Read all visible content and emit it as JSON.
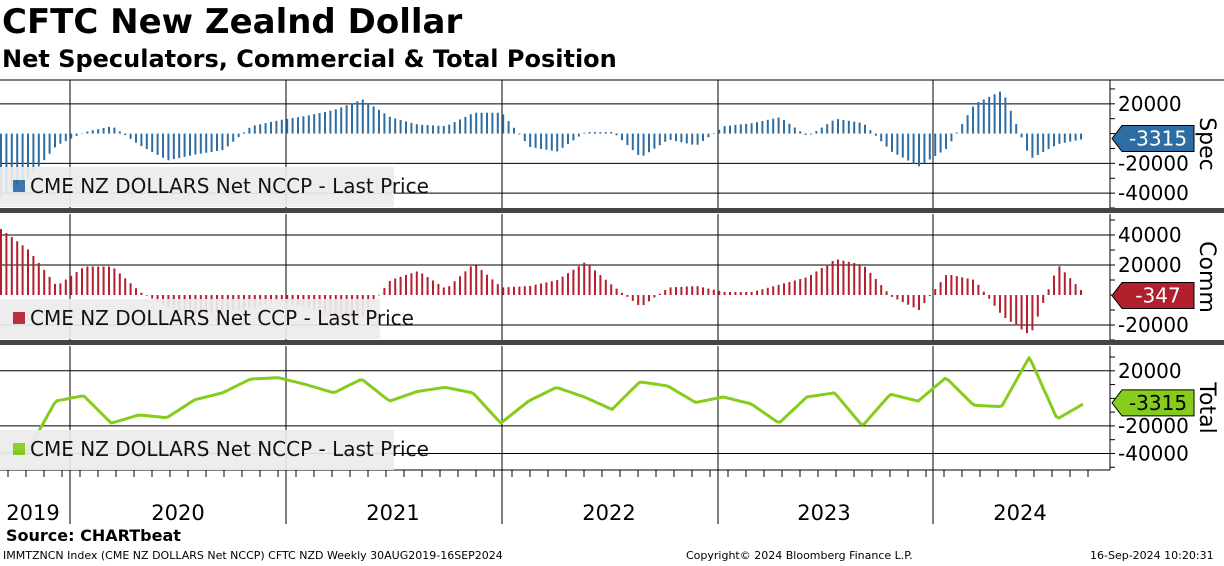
{
  "title": "CFTC New Zealnd Dollar",
  "subtitle": "Net Speculators, Commercial & Total Position",
  "source": "Source: CHARTbeat",
  "footer": {
    "left": "IMMTZNCN Index (CME NZ DOLLARS Net NCCP) CFTC NZD  Weekly 30AUG2019-16SEP2024",
    "center": "Copyright© 2024 Bloomberg Finance L.P.",
    "right": "16-Sep-2024 10:20:31"
  },
  "colors": {
    "spec": "#2e6da4",
    "comm": "#b21f2d",
    "total": "#86cc1c",
    "grid": "#000000"
  },
  "chart_data": [
    {
      "type": "bar",
      "panel": "Spec",
      "legend": "CME NZ DOLLARS Net NCCP - Last Price",
      "last_value_label": "-3315",
      "ylim": [
        -50000,
        36000
      ],
      "yticks": [
        20000,
        -20000,
        -40000
      ],
      "ytick_labels": [
        "20000",
        "-20000",
        "-40000"
      ],
      "x_start_year": 2019.66,
      "x_step_years": 0.25,
      "values": [
        -42000,
        -30000,
        -8000,
        1000,
        5000,
        -8000,
        -18000,
        -14000,
        -11000,
        5000,
        9000,
        12000,
        16000,
        23000,
        11000,
        6000,
        5000,
        14000,
        14000,
        -9000,
        -12000,
        1000,
        1000,
        -16000,
        -4000,
        -8000,
        5000,
        7000,
        11000,
        -2000,
        10000,
        7000,
        -12000,
        -22000,
        -10000,
        20000,
        29000,
        -17000,
        -7000,
        -3315
      ],
      "x_labels": [
        "2019",
        "2020",
        "2021",
        "2022",
        "2023",
        "2024"
      ]
    },
    {
      "type": "bar",
      "panel": "Comm",
      "legend": "CME NZ DOLLARS Net CCP - Last Price",
      "last_value_label": "-347",
      "ylim": [
        -30000,
        54000
      ],
      "yticks": [
        40000,
        20000,
        -20000
      ],
      "ytick_labels": [
        "40000",
        "20000",
        "-20000"
      ],
      "x_start_year": 2019.66,
      "x_step_years": 0.25,
      "values": [
        44000,
        30000,
        6000,
        19000,
        19000,
        2000,
        -8000,
        -13000,
        -11000,
        -9000,
        -4000,
        -8000,
        -15000,
        -14000,
        10000,
        16000,
        4000,
        21000,
        5000,
        6000,
        10000,
        22000,
        6000,
        -8000,
        5000,
        6000,
        2000,
        2000,
        7000,
        12000,
        24000,
        20000,
        -1000,
        -10000,
        14000,
        10000,
        -14000,
        -27000,
        20000,
        -347
      ]
    },
    {
      "type": "line",
      "panel": "Total",
      "legend": "CME NZ DOLLARS Net NCCP - Last Price",
      "last_value_label": "-3315",
      "ylim": [
        -52000,
        38000
      ],
      "yticks": [
        20000,
        -20000,
        -40000
      ],
      "ytick_labels": [
        "20000",
        "-20000",
        "-40000"
      ],
      "x_start_year": 2019.66,
      "x_step_years": 0.25,
      "values": [
        -40000,
        -38000,
        -2000,
        2000,
        -18000,
        -12000,
        -14000,
        -1000,
        4000,
        14000,
        15000,
        10000,
        4000,
        14000,
        -2000,
        5000,
        8000,
        4000,
        -18000,
        -2000,
        8000,
        1000,
        -8000,
        12000,
        9000,
        -3000,
        1000,
        -4000,
        -18000,
        1000,
        4000,
        -20000,
        3000,
        -2000,
        15000,
        -5000,
        -6000,
        30000,
        -15000,
        -3315
      ]
    }
  ]
}
